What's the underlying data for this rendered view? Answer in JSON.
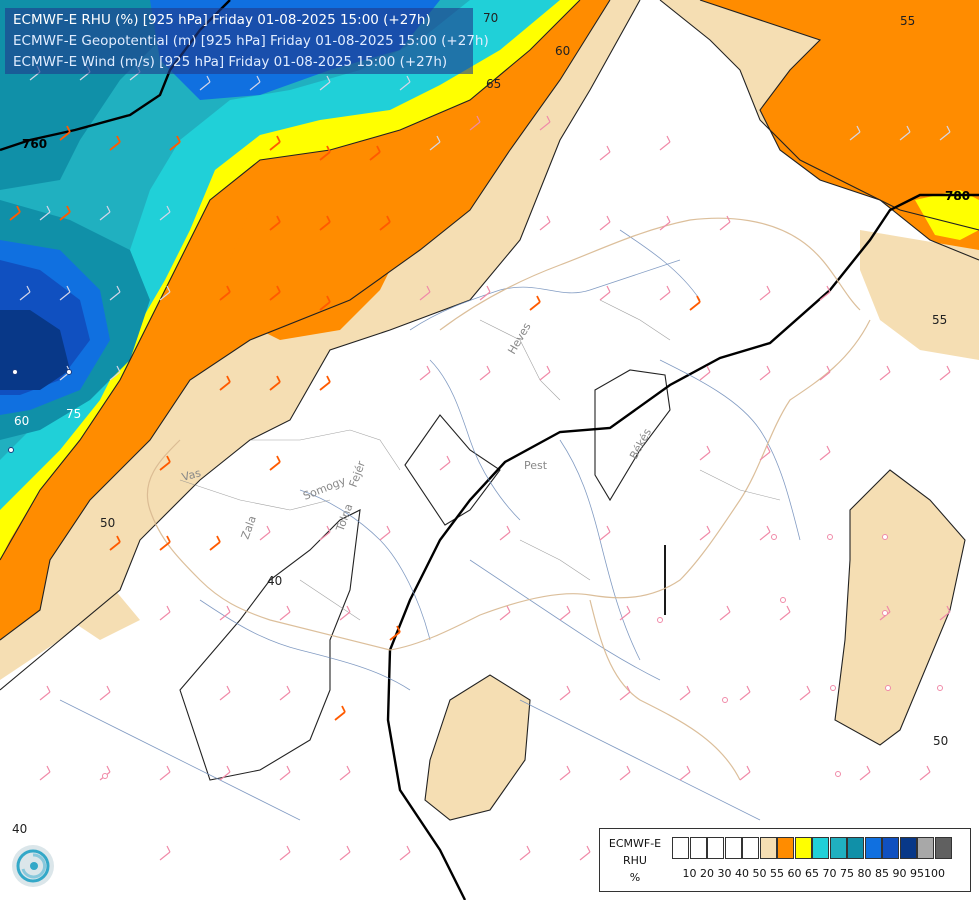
{
  "titles": {
    "line1": "ECMWF-E RHU (%) [925 hPa] Friday 01-08-2025 15:00 (+27h)",
    "line2": "ECMWF-E Geopotential (m) [925 hPa] Friday 01-08-2025 15:00 (+27h)",
    "line3": "ECMWF-E Wind (m/s) [925 hPa] Friday 01-08-2025 15:00 (+27h)"
  },
  "legend": {
    "label1": "ECMWF-E",
    "label2": "RHU",
    "label3": "%",
    "colors": [
      "#ffffff",
      "#ffffff",
      "#ffffff",
      "#ffffff",
      "#ffffff",
      "#f5deb3",
      "#ff8c00",
      "#ffff00",
      "#20d0d8",
      "#20b0c0",
      "#1090a8",
      "#1070e0",
      "#1050c0",
      "#083888",
      "#a8a8a8",
      "#606060"
    ],
    "ticks": [
      "10",
      "20",
      "30",
      "40",
      "50",
      "55",
      "60",
      "65",
      "70",
      "75",
      "80",
      "85",
      "90",
      "95",
      "100"
    ]
  },
  "contour_labels": {
    "geo_760": "760",
    "geo_780": "780",
    "rhu_70": "70",
    "rhu_65": "65",
    "rhu_60a": "60",
    "rhu_55a": "55",
    "rhu_55b": "55",
    "rhu_50a": "50",
    "rhu_50b": "50",
    "rhu_40a": "40",
    "rhu_40b": "40",
    "rhu_60b": "60",
    "rhu_75": "75"
  },
  "place_labels": {
    "heves": "Heves",
    "pest": "Pest",
    "bekes": "Békés",
    "vas": "Vas",
    "somogy": "Somogy",
    "zala": "Zala",
    "tolna": "Tolna",
    "fejer": "Fejér"
  },
  "icons": {
    "logo": "ecmwf-logo-icon"
  }
}
